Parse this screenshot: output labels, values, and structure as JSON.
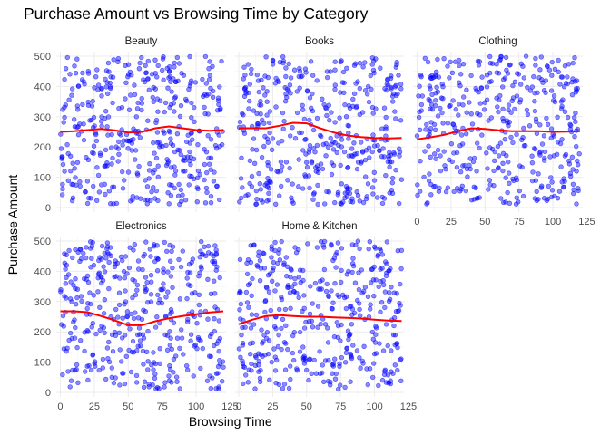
{
  "chart_data": {
    "type": "scatter",
    "title": "Purchase Amount vs Browsing Time by Category",
    "xlabel": "Browsing Time",
    "ylabel": "Purchase Amount",
    "xlim": [
      -3,
      122
    ],
    "ylim": [
      -15,
      515
    ],
    "x_ticks": [
      0,
      25,
      50,
      75,
      100,
      125
    ],
    "y_ticks": [
      0,
      100,
      200,
      300,
      400,
      500
    ],
    "point_color": "#0000ff",
    "smooth_color": "#ff0000",
    "grid": true,
    "panels": [
      {
        "category": "Beauty",
        "smooth": [
          [
            0,
            250
          ],
          [
            10,
            252
          ],
          [
            20,
            256
          ],
          [
            30,
            260
          ],
          [
            40,
            255
          ],
          [
            50,
            248
          ],
          [
            60,
            250
          ],
          [
            70,
            262
          ],
          [
            80,
            268
          ],
          [
            90,
            262
          ],
          [
            100,
            256
          ],
          [
            110,
            254
          ],
          [
            120,
            256
          ]
        ]
      },
      {
        "category": "Books",
        "smooth": [
          [
            0,
            262
          ],
          [
            10,
            262
          ],
          [
            20,
            262
          ],
          [
            30,
            270
          ],
          [
            40,
            280
          ],
          [
            50,
            278
          ],
          [
            60,
            262
          ],
          [
            70,
            248
          ],
          [
            80,
            238
          ],
          [
            90,
            233
          ],
          [
            100,
            230
          ],
          [
            110,
            228
          ],
          [
            120,
            230
          ]
        ]
      },
      {
        "category": "Clothing",
        "smooth": [
          [
            0,
            225
          ],
          [
            10,
            232
          ],
          [
            20,
            240
          ],
          [
            30,
            252
          ],
          [
            40,
            262
          ],
          [
            50,
            260
          ],
          [
            60,
            255
          ],
          [
            70,
            252
          ],
          [
            80,
            252
          ],
          [
            90,
            252
          ],
          [
            100,
            250
          ],
          [
            110,
            251
          ],
          [
            120,
            252
          ]
        ]
      },
      {
        "category": "Electronics",
        "smooth": [
          [
            0,
            268
          ],
          [
            10,
            268
          ],
          [
            20,
            265
          ],
          [
            30,
            252
          ],
          [
            40,
            238
          ],
          [
            50,
            222
          ],
          [
            60,
            222
          ],
          [
            70,
            235
          ],
          [
            80,
            245
          ],
          [
            90,
            252
          ],
          [
            100,
            258
          ],
          [
            110,
            264
          ],
          [
            120,
            268
          ]
        ]
      },
      {
        "category": "Home & Kitchen",
        "smooth": [
          [
            0,
            225
          ],
          [
            10,
            240
          ],
          [
            20,
            252
          ],
          [
            30,
            255
          ],
          [
            40,
            252
          ],
          [
            50,
            250
          ],
          [
            60,
            250
          ],
          [
            70,
            248
          ],
          [
            80,
            246
          ],
          [
            90,
            244
          ],
          [
            100,
            240
          ],
          [
            110,
            237
          ],
          [
            120,
            236
          ]
        ]
      }
    ]
  }
}
